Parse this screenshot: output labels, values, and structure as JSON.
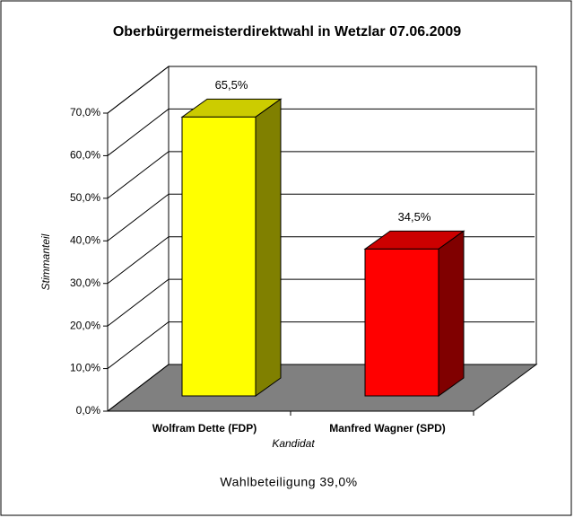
{
  "chart_data": {
    "type": "bar3d",
    "title": "Oberbürgermeisterdirektwahl in Wetzlar 07.06.2009",
    "categories": [
      "Wolfram Dette (FDP)",
      "Manfred Wagner (SPD)"
    ],
    "values": [
      65.5,
      34.5
    ],
    "value_labels": [
      "65,5%",
      "34,5%"
    ],
    "colors": [
      "#ffff00",
      "#ff0000"
    ],
    "ylim": [
      0,
      70
    ],
    "yticks": [
      {
        "value": 0,
        "label": "0,0%"
      },
      {
        "value": 10,
        "label": "10,0%"
      },
      {
        "value": 20,
        "label": "20,0%"
      },
      {
        "value": 30,
        "label": "30,0%"
      },
      {
        "value": 40,
        "label": "40,0%"
      },
      {
        "value": 50,
        "label": "50,0%"
      },
      {
        "value": 60,
        "label": "60,0%"
      },
      {
        "value": 70,
        "label": "70,0%"
      }
    ],
    "grid": true,
    "y_label": "Stimmanteil",
    "x_label": "Kandidat",
    "annotation": "Wahlbeteiligung 39,0%"
  }
}
